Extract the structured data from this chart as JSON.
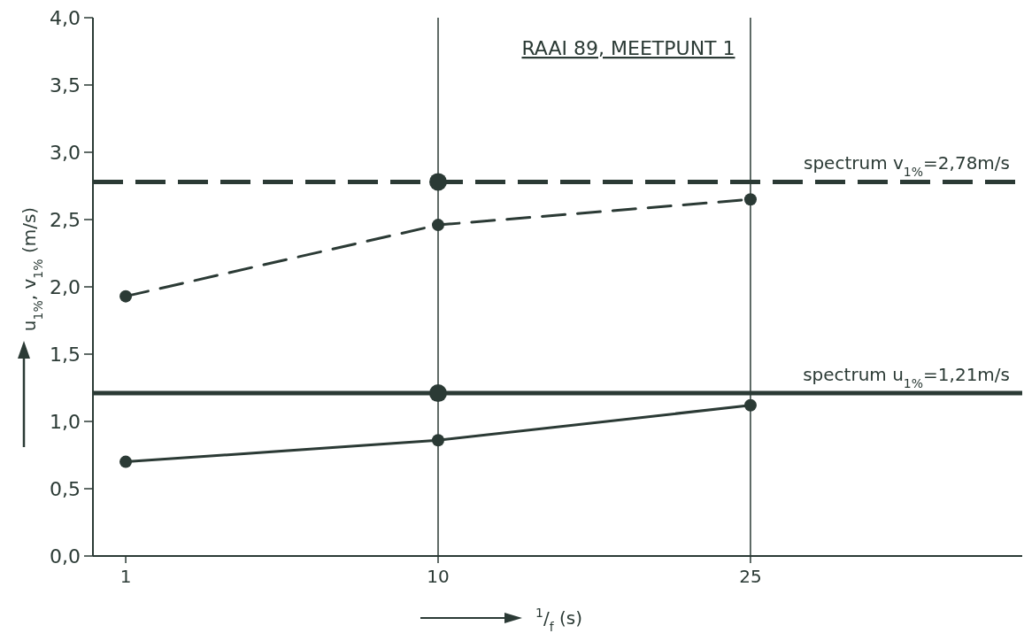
{
  "chart_data": {
    "type": "line",
    "title": "RAAI 89, MEETPUNT 1",
    "xlabel": "$^{1}$/$_{f}$ (s)",
    "ylabel": "u$_{1%}$, v$_{1%}$ (m/s)",
    "categories": [
      "1",
      "10",
      "25"
    ],
    "series": [
      {
        "color": "#2b3a35",
        "values": [
          1.93,
          2.46,
          2.65
        ],
        "line_style": "dashed",
        "marker": "circle"
      },
      {
        "color": "#2b3a35",
        "values": [
          0.7,
          0.86,
          1.12
        ],
        "line_style": "solid",
        "marker": "circle"
      },
      {
        "type": "scatter",
        "color": "#2b3a35",
        "x": [
          "10",
          "10"
        ],
        "values": [
          2.78,
          1.21
        ],
        "marker": "circle"
      }
    ],
    "ref_lines": [
      {
        "axis": "y",
        "value": 2.78,
        "label": "spectrum v$_{1%}$=2,78m/s",
        "line_style": "dashed",
        "color": "#2b3a35"
      },
      {
        "axis": "y",
        "value": 1.21,
        "label": "spectrum u$_{1%}$=1,21m/s",
        "line_style": "solid",
        "color": "#2b3a35"
      }
    ],
    "ylim": [
      0,
      4
    ],
    "yticks": [
      {
        "value": 0,
        "label": "0,0"
      },
      {
        "value": 0.5,
        "label": "0,5"
      },
      {
        "value": 1,
        "label": "1,0"
      },
      {
        "value": 1.5,
        "label": "1,5"
      },
      {
        "value": 2,
        "label": "2,0"
      },
      {
        "value": 2.5,
        "label": "2,5"
      },
      {
        "value": 3,
        "label": "3,0"
      },
      {
        "value": 3.5,
        "label": "3,5"
      },
      {
        "value": 4,
        "label": "4,0"
      }
    ],
    "grid": "x"
  }
}
